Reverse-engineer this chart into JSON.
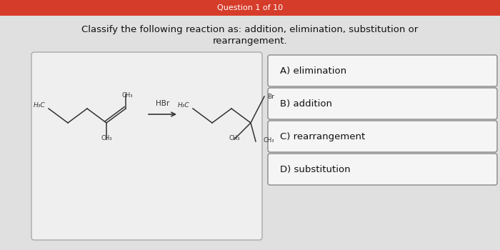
{
  "header_text": "Question 1 of 10",
  "header_bg": "#d63c2a",
  "header_text_color": "#ffffff",
  "bg_color": "#e0e0e0",
  "question_text_line1": "Classify the following reaction as: addition, elimination, substitution or",
  "question_text_line2": "rearrangement.",
  "answer_options": [
    "A) elimination",
    "B) addition",
    "C) rearrangement",
    "D) substitution"
  ],
  "answer_box_color": "#f5f5f5",
  "answer_border_color": "#888888",
  "reaction_box_color": "#efefef",
  "reaction_border_color": "#aaaaaa",
  "text_color": "#111111"
}
